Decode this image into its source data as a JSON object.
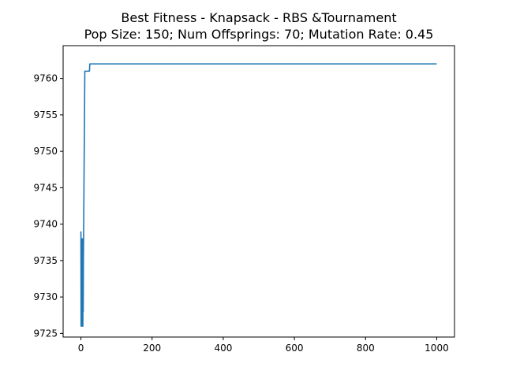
{
  "chart_data": {
    "type": "line",
    "title": "Best Fitness - Knapsack - RBS &Tournament",
    "subtitle": "Pop Size: 150; Num Offsprings: 70; Mutation Rate: 0.45",
    "xlabel": "",
    "ylabel": "",
    "xlim": [
      -50,
      1050
    ],
    "ylim": [
      9724.5,
      9764.5
    ],
    "xticks": [
      0,
      200,
      400,
      600,
      800,
      1000
    ],
    "yticks": [
      9725,
      9730,
      9735,
      9740,
      9745,
      9750,
      9755,
      9760
    ],
    "grid": false,
    "legend": "none",
    "series": [
      {
        "color": "#1f77b4",
        "x": [
          0,
          0.5,
          1,
          1.5,
          2,
          2.5,
          3,
          3.5,
          4,
          4.5,
          5,
          5.5,
          6,
          6.5,
          7,
          8,
          9,
          10,
          11,
          12,
          13,
          14,
          15,
          16,
          17,
          18,
          19,
          20,
          21,
          22,
          23,
          24,
          25,
          26,
          27,
          30,
          50,
          100,
          200,
          300,
          400,
          500,
          600,
          700,
          800,
          900,
          1000
        ],
        "y": [
          9739,
          9726,
          9738,
          9726,
          9737,
          9726,
          9738,
          9726,
          9737,
          9727,
          9738,
          9726,
          9736,
          9728,
          9735,
          9741,
          9748,
          9754,
          9761,
          9761,
          9761,
          9761,
          9761,
          9761,
          9761,
          9761,
          9761,
          9761,
          9761,
          9761,
          9761,
          9761,
          9762,
          9762,
          9762,
          9762,
          9762,
          9762,
          9762,
          9762,
          9762,
          9762,
          9762,
          9762,
          9762,
          9762,
          9762
        ]
      }
    ]
  }
}
